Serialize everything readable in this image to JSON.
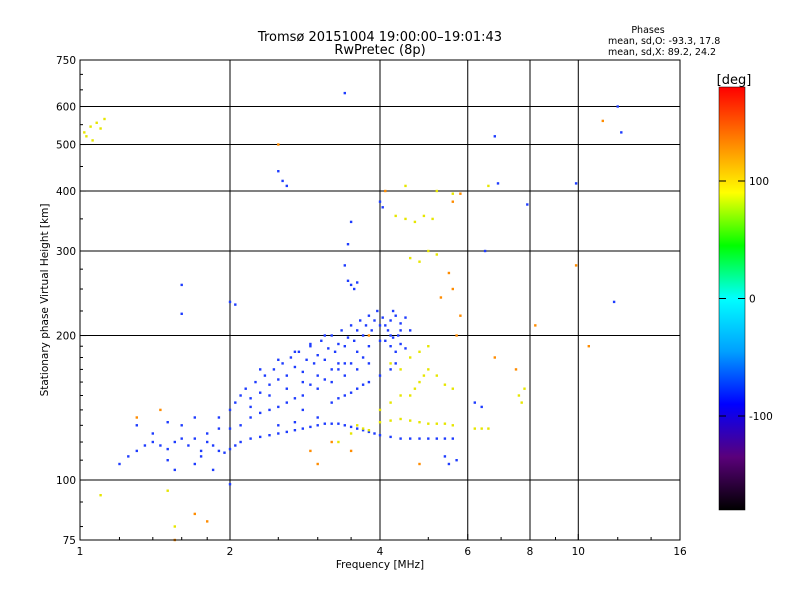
{
  "chart_data": {
    "type": "scatter",
    "title": "Tromsø 20151004 19:00:00–19:01:43",
    "subtitle": "RwPretec (8p)",
    "xlabel": "Frequency [MHz]",
    "ylabel": "Stationary phase Virtual Height [km]",
    "x_scale": "log",
    "y_scale": "log",
    "xlim": [
      1,
      16
    ],
    "ylim": [
      75,
      750
    ],
    "x_ticks": [
      {
        "value": 1,
        "label": "1"
      },
      {
        "value": 2,
        "label": "2"
      },
      {
        "value": 4,
        "label": "4"
      },
      {
        "value": 6,
        "label": "6"
      },
      {
        "value": 8,
        "label": "8"
      },
      {
        "value": 10,
        "label": "10"
      },
      {
        "value": 16,
        "label": "16"
      }
    ],
    "y_ticks": [
      {
        "value": 75,
        "label": "75"
      },
      {
        "value": 100,
        "label": "100"
      },
      {
        "value": 200,
        "label": "200"
      },
      {
        "value": 300,
        "label": "300"
      },
      {
        "value": 400,
        "label": "400"
      },
      {
        "value": 500,
        "label": "500"
      },
      {
        "value": 600,
        "label": "600"
      },
      {
        "value": 750,
        "label": "750"
      }
    ],
    "grid_x": [
      2,
      4,
      6,
      8,
      10
    ],
    "grid_y": [
      100,
      200,
      300,
      400,
      500,
      600
    ],
    "grid": true,
    "stats": {
      "heading": "Phases",
      "line_o": "mean, sd,O: -93.3, 17.8",
      "line_x": "mean, sd,X:  89.2, 24.2"
    },
    "colorbar": {
      "label": "[deg]",
      "range": [
        -180,
        180
      ],
      "ticks": [
        {
          "value": 100,
          "label": "100"
        },
        {
          "value": 0,
          "label": "0"
        },
        {
          "value": -100,
          "label": "-100"
        }
      ],
      "stops": [
        "#000000",
        "#5a007a",
        "#0000ff",
        "#00a0ff",
        "#00ffff",
        "#00ff00",
        "#ffff00",
        "#ff8000",
        "#ff0000"
      ]
    },
    "series": [
      {
        "name": "O",
        "color": "#1e3cff",
        "points": [
          [
            1.2,
            108
          ],
          [
            1.25,
            112
          ],
          [
            1.3,
            115
          ],
          [
            1.35,
            118
          ],
          [
            1.4,
            120
          ],
          [
            1.45,
            118
          ],
          [
            1.5,
            116
          ],
          [
            1.55,
            120
          ],
          [
            1.6,
            122
          ],
          [
            1.65,
            118
          ],
          [
            1.7,
            122
          ],
          [
            1.75,
            115
          ],
          [
            1.8,
            120
          ],
          [
            1.85,
            118
          ],
          [
            1.9,
            115
          ],
          [
            1.95,
            114
          ],
          [
            2.0,
            116
          ],
          [
            2.05,
            118
          ],
          [
            2.1,
            120
          ],
          [
            2.2,
            122
          ],
          [
            2.3,
            123
          ],
          [
            2.4,
            124
          ],
          [
            2.5,
            125
          ],
          [
            2.6,
            126
          ],
          [
            2.7,
            127
          ],
          [
            2.8,
            128
          ],
          [
            2.9,
            129
          ],
          [
            3.0,
            130
          ],
          [
            3.1,
            131
          ],
          [
            3.2,
            131
          ],
          [
            3.3,
            131
          ],
          [
            3.4,
            130
          ],
          [
            3.5,
            129
          ],
          [
            3.6,
            128
          ],
          [
            3.7,
            127
          ],
          [
            3.8,
            126
          ],
          [
            3.9,
            125
          ],
          [
            4.0,
            124
          ],
          [
            4.2,
            123
          ],
          [
            4.4,
            122
          ],
          [
            4.6,
            122
          ],
          [
            4.8,
            122
          ],
          [
            5.0,
            122
          ],
          [
            5.2,
            122
          ],
          [
            5.4,
            122
          ],
          [
            5.6,
            122
          ],
          [
            1.5,
            132
          ],
          [
            1.6,
            130
          ],
          [
            1.7,
            135
          ],
          [
            1.8,
            125
          ],
          [
            1.9,
            128
          ],
          [
            2.0,
            140
          ],
          [
            2.05,
            145
          ],
          [
            2.1,
            150
          ],
          [
            2.15,
            155
          ],
          [
            2.2,
            148
          ],
          [
            2.25,
            160
          ],
          [
            2.3,
            152
          ],
          [
            2.35,
            165
          ],
          [
            2.4,
            158
          ],
          [
            2.45,
            170
          ],
          [
            2.5,
            162
          ],
          [
            2.55,
            175
          ],
          [
            2.6,
            165
          ],
          [
            2.65,
            180
          ],
          [
            2.7,
            172
          ],
          [
            2.75,
            185
          ],
          [
            2.8,
            168
          ],
          [
            2.85,
            178
          ],
          [
            2.9,
            190
          ],
          [
            2.95,
            175
          ],
          [
            3.0,
            182
          ],
          [
            3.05,
            195
          ],
          [
            3.1,
            178
          ],
          [
            3.15,
            188
          ],
          [
            3.2,
            200
          ],
          [
            3.25,
            185
          ],
          [
            3.3,
            192
          ],
          [
            3.35,
            205
          ],
          [
            3.4,
            190
          ],
          [
            3.45,
            198
          ],
          [
            3.5,
            210
          ],
          [
            3.55,
            195
          ],
          [
            3.6,
            205
          ],
          [
            3.65,
            215
          ],
          [
            3.7,
            200
          ],
          [
            3.75,
            210
          ],
          [
            3.8,
            220
          ],
          [
            3.85,
            205
          ],
          [
            3.9,
            215
          ],
          [
            3.95,
            225
          ],
          [
            4.0,
            210
          ],
          [
            4.05,
            218
          ],
          [
            4.1,
            195
          ],
          [
            4.15,
            205
          ],
          [
            4.2,
            190
          ],
          [
            4.25,
            198
          ],
          [
            4.3,
            185
          ],
          [
            4.4,
            192
          ],
          [
            4.5,
            188
          ],
          [
            2.2,
            135
          ],
          [
            2.4,
            140
          ],
          [
            2.6,
            145
          ],
          [
            2.8,
            150
          ],
          [
            3.0,
            155
          ],
          [
            3.2,
            160
          ],
          [
            3.4,
            165
          ],
          [
            3.6,
            170
          ],
          [
            3.8,
            175
          ],
          [
            2.3,
            170
          ],
          [
            2.5,
            178
          ],
          [
            2.7,
            185
          ],
          [
            2.9,
            192
          ],
          [
            3.1,
            200
          ],
          [
            3.3,
            170
          ],
          [
            3.5,
            175
          ],
          [
            3.7,
            180
          ],
          [
            2.1,
            130
          ],
          [
            2.3,
            138
          ],
          [
            2.5,
            142
          ],
          [
            2.7,
            148
          ],
          [
            2.9,
            158
          ],
          [
            3.1,
            162
          ],
          [
            3.3,
            148
          ],
          [
            3.5,
            152
          ],
          [
            3.7,
            158
          ],
          [
            1.9,
            135
          ],
          [
            2.0,
            128
          ],
          [
            2.2,
            142
          ],
          [
            2.4,
            150
          ],
          [
            2.6,
            155
          ],
          [
            2.8,
            160
          ],
          [
            3.0,
            165
          ],
          [
            3.2,
            170
          ],
          [
            3.4,
            175
          ],
          [
            3.6,
            185
          ],
          [
            3.8,
            190
          ],
          [
            4.0,
            195
          ],
          [
            4.2,
            200
          ],
          [
            4.4,
            205
          ],
          [
            3.45,
            260
          ],
          [
            3.5,
            255
          ],
          [
            3.55,
            250
          ],
          [
            3.6,
            258
          ],
          [
            3.4,
            280
          ],
          [
            3.5,
            345
          ],
          [
            3.45,
            310
          ],
          [
            4.0,
            380
          ],
          [
            4.05,
            370
          ],
          [
            2.5,
            440
          ],
          [
            2.55,
            420
          ],
          [
            2.6,
            410
          ],
          [
            2.0,
            235
          ],
          [
            2.05,
            232
          ],
          [
            1.6,
            255
          ],
          [
            1.6,
            222
          ],
          [
            3.3,
            175
          ],
          [
            2.8,
            140
          ],
          [
            3.0,
            135
          ],
          [
            3.2,
            145
          ],
          [
            3.4,
            150
          ],
          [
            3.6,
            155
          ],
          [
            3.8,
            160
          ],
          [
            4.0,
            165
          ],
          [
            4.2,
            170
          ],
          [
            4.3,
            175
          ],
          [
            2.5,
            130
          ],
          [
            2.7,
            132
          ],
          [
            1.4,
            125
          ],
          [
            1.3,
            130
          ],
          [
            1.5,
            110
          ],
          [
            1.55,
            105
          ],
          [
            1.7,
            108
          ],
          [
            1.75,
            112
          ],
          [
            1.85,
            105
          ],
          [
            2.0,
            98
          ],
          [
            5.4,
            112
          ],
          [
            5.5,
            108
          ],
          [
            5.7,
            110
          ],
          [
            6.2,
            145
          ],
          [
            6.4,
            142
          ],
          [
            6.9,
            415
          ],
          [
            6.8,
            520
          ],
          [
            7.9,
            375
          ],
          [
            9.9,
            415
          ],
          [
            12.0,
            600
          ],
          [
            12.2,
            530
          ],
          [
            11.8,
            235
          ],
          [
            6.5,
            300
          ],
          [
            3.4,
            640
          ],
          [
            4.1,
            210
          ],
          [
            4.2,
            215
          ],
          [
            4.3,
            220
          ],
          [
            4.4,
            212
          ],
          [
            4.5,
            218
          ],
          [
            4.6,
            205
          ],
          [
            4.35,
            200
          ],
          [
            4.25,
            225
          ]
        ]
      },
      {
        "name": "X",
        "color": "#e6e600",
        "points": [
          [
            4.0,
            132
          ],
          [
            4.2,
            133
          ],
          [
            4.4,
            134
          ],
          [
            4.6,
            133
          ],
          [
            4.8,
            132
          ],
          [
            5.0,
            131
          ],
          [
            5.2,
            131
          ],
          [
            5.4,
            131
          ],
          [
            5.6,
            130
          ],
          [
            6.2,
            128
          ],
          [
            6.4,
            128
          ],
          [
            6.6,
            128
          ],
          [
            3.6,
            130
          ],
          [
            3.7,
            128
          ],
          [
            3.8,
            127
          ],
          [
            4.6,
            150
          ],
          [
            4.7,
            155
          ],
          [
            4.8,
            160
          ],
          [
            4.9,
            165
          ],
          [
            5.0,
            170
          ],
          [
            5.2,
            165
          ],
          [
            5.4,
            158
          ],
          [
            5.6,
            155
          ],
          [
            4.2,
            175
          ],
          [
            4.4,
            170
          ],
          [
            4.6,
            180
          ],
          [
            4.8,
            185
          ],
          [
            5.0,
            190
          ],
          [
            4.3,
            355
          ],
          [
            4.5,
            350
          ],
          [
            4.7,
            345
          ],
          [
            4.9,
            355
          ],
          [
            5.1,
            350
          ],
          [
            4.0,
            140
          ],
          [
            4.2,
            145
          ],
          [
            4.4,
            150
          ],
          [
            1.02,
            530
          ],
          [
            1.05,
            545
          ],
          [
            1.08,
            555
          ],
          [
            1.1,
            540
          ],
          [
            1.12,
            565
          ],
          [
            1.03,
            520
          ],
          [
            1.06,
            510
          ],
          [
            3.3,
            120
          ],
          [
            3.5,
            125
          ],
          [
            7.6,
            150
          ],
          [
            7.8,
            155
          ],
          [
            7.7,
            145
          ],
          [
            5.2,
            400
          ],
          [
            5.6,
            395
          ],
          [
            4.5,
            410
          ],
          [
            6.6,
            410
          ],
          [
            1.5,
            95
          ],
          [
            1.55,
            80
          ],
          [
            1.1,
            93
          ],
          [
            5.0,
            300
          ],
          [
            5.2,
            295
          ],
          [
            4.6,
            290
          ],
          [
            4.8,
            285
          ]
        ]
      },
      {
        "name": "scatter",
        "color": "#ff8c00",
        "points": [
          [
            1.7,
            85
          ],
          [
            2.5,
            500
          ],
          [
            3.2,
            120
          ],
          [
            3.5,
            115
          ],
          [
            4.8,
            108
          ],
          [
            5.6,
            250
          ],
          [
            5.8,
            220
          ],
          [
            5.5,
            270
          ],
          [
            5.3,
            240
          ],
          [
            5.8,
            395
          ],
          [
            5.6,
            380
          ],
          [
            7.5,
            170
          ],
          [
            8.2,
            210
          ],
          [
            6.8,
            180
          ],
          [
            11.2,
            560
          ],
          [
            1.3,
            135
          ],
          [
            9.9,
            280
          ],
          [
            10.5,
            190
          ],
          [
            1.55,
            75
          ],
          [
            4.1,
            400
          ],
          [
            5.7,
            200
          ],
          [
            2.9,
            115
          ],
          [
            3.0,
            108
          ],
          [
            3.8,
            200
          ],
          [
            1.45,
            140
          ],
          [
            1.8,
            82
          ]
        ]
      }
    ]
  }
}
